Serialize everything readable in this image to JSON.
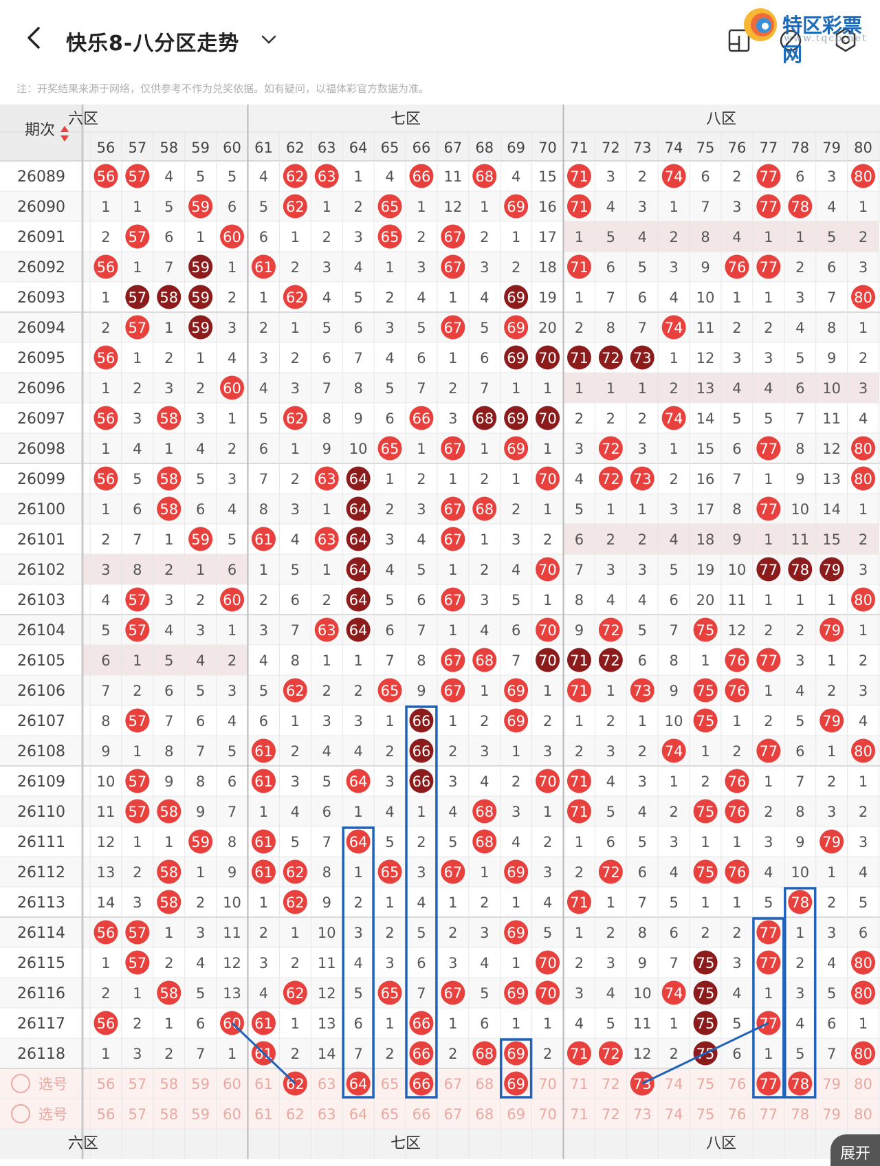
{
  "header": {
    "title": "快乐8-八分区走势",
    "logo_name": "特区彩票网",
    "logo_url": "www.tqcp.net"
  },
  "note": "注：开奖结果来源于网络，仅供参考不作为兑奖依据。如有疑问，以福体彩官方数据为准。",
  "table": {
    "period_header": "期次",
    "zones": [
      "六区",
      "七区",
      "八区"
    ],
    "zone_bottom_partial": "六区",
    "columns": [
      56,
      57,
      58,
      59,
      60,
      61,
      62,
      63,
      64,
      65,
      66,
      67,
      68,
      69,
      70,
      71,
      72,
      73,
      74,
      75,
      76,
      77,
      78,
      79,
      80
    ],
    "rows": [
      {
        "p": "26089",
        "v": [
          "H",
          "H",
          4,
          5,
          5,
          4,
          "H",
          "H",
          1,
          4,
          "H",
          11,
          "H",
          4,
          15,
          "H",
          3,
          2,
          "H",
          6,
          2,
          "H",
          6,
          3,
          "H"
        ]
      },
      {
        "p": "26090",
        "v": [
          1,
          1,
          5,
          "H",
          6,
          5,
          "H",
          1,
          2,
          "H",
          1,
          12,
          1,
          "H",
          16,
          "H",
          4,
          3,
          1,
          7,
          3,
          "H",
          "H",
          4,
          1
        ]
      },
      {
        "p": "26091",
        "v": [
          2,
          "H",
          6,
          1,
          "H",
          6,
          1,
          2,
          3,
          "H",
          2,
          "H",
          2,
          1,
          17,
          1,
          5,
          4,
          2,
          8,
          4,
          1,
          1,
          5,
          2
        ]
      },
      {
        "p": "26092",
        "v": [
          "H",
          1,
          7,
          "D",
          1,
          "H",
          2,
          3,
          4,
          1,
          3,
          "H",
          3,
          2,
          18,
          "H",
          6,
          5,
          3,
          9,
          "H",
          "H",
          2,
          6,
          3
        ]
      },
      {
        "p": "26093",
        "v": [
          1,
          "D",
          "D",
          "D",
          2,
          1,
          "H",
          4,
          5,
          2,
          4,
          1,
          4,
          "D",
          19,
          1,
          7,
          6,
          4,
          10,
          1,
          1,
          3,
          7,
          "H"
        ]
      },
      {
        "p": "26094",
        "v": [
          2,
          "H",
          1,
          "D",
          3,
          2,
          1,
          5,
          6,
          3,
          5,
          "H",
          5,
          "H",
          20,
          2,
          8,
          7,
          "H",
          11,
          2,
          2,
          4,
          8,
          1
        ]
      },
      {
        "p": "26095",
        "v": [
          "H",
          1,
          2,
          1,
          4,
          3,
          2,
          6,
          7,
          4,
          6,
          1,
          6,
          "D",
          "D",
          "D",
          "D",
          "D",
          1,
          12,
          3,
          3,
          5,
          9,
          2
        ]
      },
      {
        "p": "26096",
        "v": [
          1,
          2,
          3,
          2,
          "H",
          4,
          3,
          7,
          8,
          5,
          7,
          2,
          7,
          1,
          1,
          1,
          1,
          1,
          2,
          13,
          4,
          4,
          6,
          10,
          3
        ]
      },
      {
        "p": "26097",
        "v": [
          "H",
          3,
          "H",
          3,
          1,
          5,
          "H",
          8,
          9,
          6,
          "H",
          3,
          "D",
          "D",
          "D",
          2,
          2,
          2,
          "H",
          14,
          5,
          5,
          7,
          11,
          4
        ]
      },
      {
        "p": "26098",
        "v": [
          1,
          4,
          1,
          4,
          2,
          6,
          1,
          9,
          10,
          "H",
          1,
          "H",
          1,
          "H",
          1,
          3,
          "H",
          3,
          1,
          15,
          6,
          "H",
          8,
          12,
          "H"
        ]
      },
      {
        "p": "26099",
        "v": [
          "H",
          5,
          "H",
          5,
          3,
          7,
          2,
          "H",
          "D",
          1,
          2,
          1,
          2,
          1,
          "H",
          4,
          "H",
          "H",
          2,
          16,
          7,
          1,
          9,
          13,
          "H"
        ]
      },
      {
        "p": "26100",
        "v": [
          1,
          6,
          "H",
          6,
          4,
          8,
          3,
          1,
          "D",
          2,
          3,
          "H",
          "H",
          2,
          1,
          5,
          1,
          1,
          3,
          17,
          8,
          "H",
          10,
          14,
          1
        ]
      },
      {
        "p": "26101",
        "v": [
          2,
          7,
          1,
          "H",
          5,
          "H",
          4,
          "H",
          "D",
          3,
          4,
          "H",
          1,
          3,
          2,
          6,
          2,
          2,
          4,
          18,
          9,
          1,
          11,
          15,
          2
        ]
      },
      {
        "p": "26102",
        "v": [
          3,
          8,
          2,
          1,
          6,
          1,
          5,
          1,
          "D",
          4,
          5,
          1,
          2,
          4,
          "H",
          7,
          3,
          3,
          5,
          19,
          10,
          "D",
          "D",
          "D",
          3
        ]
      },
      {
        "p": "26103",
        "v": [
          4,
          "H",
          3,
          2,
          "H",
          2,
          6,
          2,
          "D",
          5,
          6,
          "H",
          3,
          5,
          1,
          8,
          4,
          4,
          6,
          20,
          11,
          1,
          1,
          1,
          "H"
        ]
      },
      {
        "p": "26104",
        "v": [
          5,
          "H",
          4,
          3,
          1,
          3,
          7,
          "H",
          "D",
          6,
          7,
          1,
          4,
          6,
          "H",
          9,
          "H",
          5,
          7,
          "H",
          12,
          2,
          2,
          "H",
          1
        ]
      },
      {
        "p": "26105",
        "v": [
          6,
          1,
          5,
          4,
          2,
          4,
          8,
          1,
          1,
          7,
          8,
          "H",
          "H",
          7,
          "D",
          "D",
          "D",
          6,
          8,
          1,
          "H",
          "H",
          3,
          1,
          2
        ]
      },
      {
        "p": "26106",
        "v": [
          7,
          2,
          6,
          5,
          3,
          5,
          "H",
          2,
          2,
          "H",
          9,
          "H",
          1,
          "H",
          1,
          "H",
          1,
          "H",
          9,
          "H",
          "H",
          1,
          4,
          2,
          3
        ]
      },
      {
        "p": "26107",
        "v": [
          8,
          "H",
          7,
          6,
          4,
          6,
          1,
          3,
          3,
          1,
          "D",
          1,
          2,
          "H",
          2,
          1,
          2,
          1,
          10,
          "H",
          1,
          2,
          5,
          "H",
          4
        ]
      },
      {
        "p": "26108",
        "v": [
          9,
          1,
          8,
          7,
          5,
          "H",
          2,
          4,
          4,
          2,
          "D",
          2,
          3,
          1,
          3,
          2,
          3,
          2,
          "H",
          1,
          2,
          "H",
          6,
          1,
          "H"
        ]
      },
      {
        "p": "26109",
        "v": [
          10,
          "H",
          9,
          8,
          6,
          "H",
          3,
          5,
          "H",
          3,
          "D",
          3,
          4,
          2,
          "H",
          "H",
          4,
          3,
          1,
          2,
          "H",
          1,
          7,
          2,
          1
        ]
      },
      {
        "p": "26110",
        "v": [
          11,
          "H",
          "H",
          9,
          7,
          1,
          4,
          6,
          1,
          4,
          1,
          4,
          "H",
          3,
          1,
          "H",
          5,
          4,
          2,
          "H",
          "H",
          2,
          8,
          3,
          2
        ]
      },
      {
        "p": "26111",
        "v": [
          12,
          1,
          1,
          "H",
          8,
          "H",
          5,
          7,
          "H",
          5,
          2,
          5,
          "H",
          4,
          2,
          1,
          6,
          5,
          3,
          1,
          1,
          3,
          9,
          "H",
          3
        ]
      },
      {
        "p": "26112",
        "v": [
          13,
          2,
          "H",
          1,
          9,
          "H",
          "H",
          8,
          1,
          "H",
          3,
          "H",
          1,
          "H",
          3,
          2,
          "H",
          6,
          4,
          "H",
          "H",
          4,
          10,
          1,
          4
        ]
      },
      {
        "p": "26113",
        "v": [
          14,
          3,
          "H",
          2,
          10,
          1,
          "H",
          9,
          2,
          1,
          4,
          1,
          2,
          1,
          4,
          "H",
          1,
          7,
          5,
          1,
          1,
          5,
          "H",
          2,
          5
        ]
      },
      {
        "p": "26114",
        "v": [
          "H",
          "H",
          1,
          3,
          11,
          2,
          1,
          10,
          3,
          2,
          5,
          2,
          3,
          "H",
          5,
          1,
          2,
          8,
          6,
          2,
          2,
          "H",
          1,
          3,
          6
        ]
      },
      {
        "p": "26115",
        "v": [
          1,
          "H",
          2,
          4,
          12,
          3,
          2,
          11,
          4,
          3,
          6,
          3,
          4,
          1,
          "H",
          2,
          3,
          9,
          7,
          "D",
          3,
          "H",
          2,
          4,
          "H"
        ]
      },
      {
        "p": "26116",
        "v": [
          2,
          1,
          "H",
          5,
          13,
          4,
          "H",
          12,
          5,
          "H",
          7,
          "H",
          5,
          "H",
          "H",
          3,
          4,
          10,
          "H",
          "D",
          4,
          1,
          3,
          5,
          "H"
        ]
      },
      {
        "p": "26117",
        "v": [
          "H",
          2,
          1,
          6,
          "H",
          "H",
          1,
          13,
          6,
          1,
          "H",
          1,
          6,
          1,
          1,
          4,
          5,
          11,
          1,
          "D",
          5,
          "H",
          4,
          6,
          1
        ]
      },
      {
        "p": "26118",
        "v": [
          1,
          3,
          2,
          7,
          1,
          "H",
          2,
          14,
          7,
          2,
          "H",
          2,
          "H",
          "H",
          2,
          "H",
          "H",
          12,
          2,
          "D",
          6,
          1,
          5,
          7,
          "H"
        ]
      }
    ],
    "select_rows": [
      {
        "label": "选号",
        "picked": [
          62,
          64,
          66,
          69,
          73,
          77,
          78
        ]
      },
      {
        "label": "选号",
        "picked": []
      }
    ],
    "shaded_rows_left": [
      "26102",
      "26105"
    ],
    "shaded_rows_right": [
      "26091",
      "26096",
      "26101"
    ]
  },
  "expand_label": "展开",
  "colors": {
    "hit": "#e8403c",
    "hit_dark": "#8c1b1b",
    "frame": "#1f62b8",
    "num": "#555555",
    "select_num": "#e9a8a0"
  }
}
